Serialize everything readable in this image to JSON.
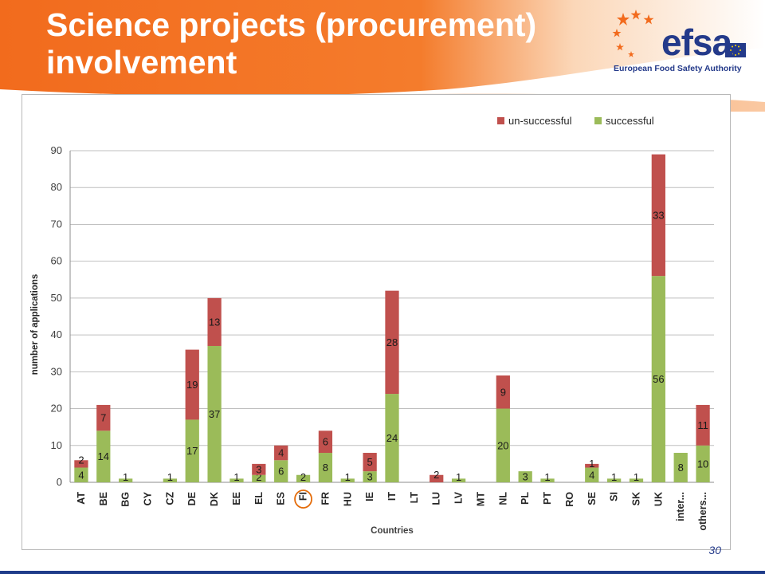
{
  "slide": {
    "title_line1": "Science projects (procurement)",
    "title_line2": "involvement",
    "page_number": "30"
  },
  "logo": {
    "wordmark": "efsa",
    "subtitle": "European Food Safety Authority"
  },
  "colors": {
    "banner_orange": "#f26b1d",
    "successful": "#9bbb59",
    "unsuccessful": "#c0504d",
    "efsa_blue": "#243a8a",
    "highlight_circle": "#e46c0a"
  },
  "chart_data": {
    "type": "bar",
    "stacked": true,
    "xlabel": "Countries",
    "ylabel": "number of applications",
    "ylim": [
      0,
      90
    ],
    "yticks": [
      0,
      10,
      20,
      30,
      40,
      50,
      60,
      70,
      80,
      90
    ],
    "grid": true,
    "legend_position": "top-right",
    "highlighted_category": "FI",
    "categories": [
      "AT",
      "BE",
      "BG",
      "CY",
      "CZ",
      "DE",
      "DK",
      "EE",
      "EL",
      "ES",
      "FI",
      "FR",
      "HU",
      "IE",
      "IT",
      "LT",
      "LU",
      "LV",
      "MT",
      "NL",
      "PL",
      "PT",
      "RO",
      "SE",
      "SI",
      "SK",
      "UK",
      "inter...",
      "others..."
    ],
    "series": [
      {
        "name": "successful",
        "values": [
          4,
          14,
          1,
          0,
          1,
          17,
          37,
          1,
          2,
          6,
          2,
          8,
          1,
          3,
          24,
          0,
          0,
          1,
          0,
          20,
          3,
          1,
          0,
          4,
          1,
          1,
          56,
          8,
          10
        ]
      },
      {
        "name": "un-successful",
        "values": [
          2,
          7,
          0,
          0,
          0,
          19,
          13,
          0,
          3,
          4,
          0,
          6,
          0,
          5,
          28,
          0,
          2,
          0,
          0,
          9,
          0,
          0,
          0,
          1,
          0,
          0,
          33,
          0,
          11
        ]
      }
    ]
  }
}
